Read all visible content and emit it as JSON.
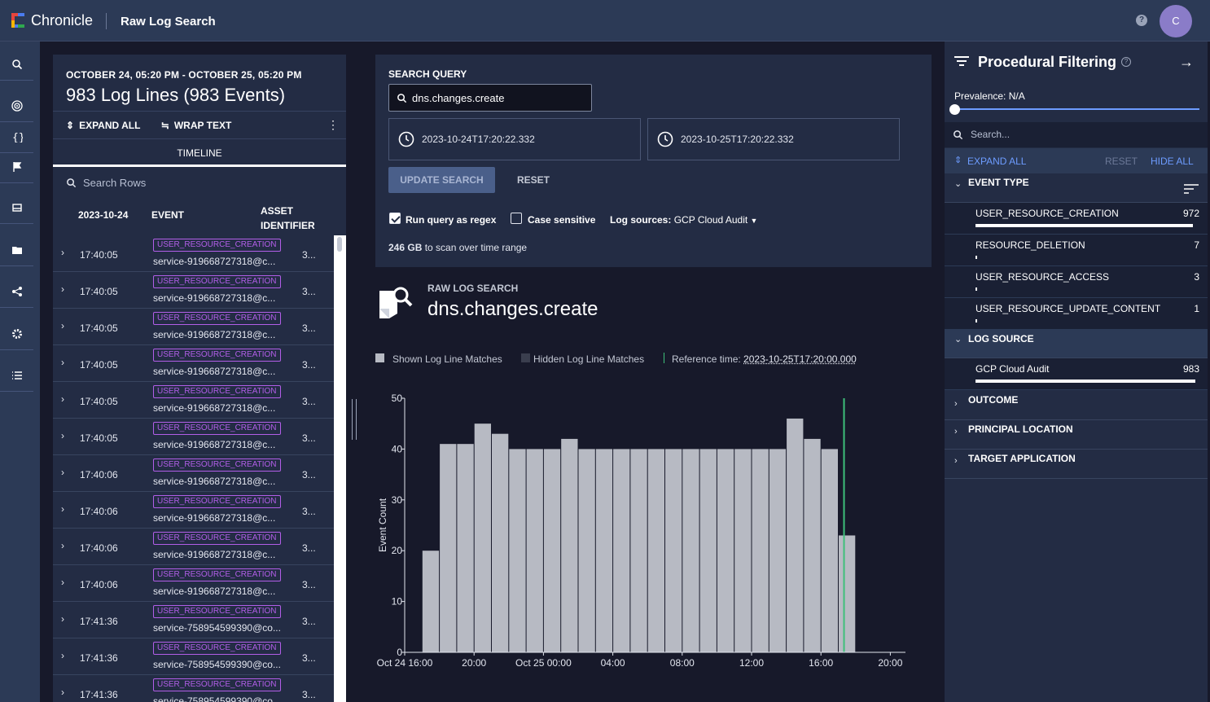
{
  "header": {
    "brand": "Chronicle",
    "app_title": "Raw Log Search",
    "help": "?",
    "avatar_initial": "C"
  },
  "sidenav": {
    "items": [
      "search-icon",
      "radar-icon",
      "braces-icon",
      "flag-icon",
      "inbox-icon",
      "folder-icon",
      "share-icon",
      "gear-icon",
      "list-icon"
    ]
  },
  "left_panel": {
    "range": "OCTOBER 24, 05:20 PM - OCTOBER 25, 05:20 PM",
    "count": "983 Log Lines (983 Events)",
    "expand_all": "EXPAND ALL",
    "wrap_text": "WRAP TEXT",
    "tab": "TIMELINE",
    "search_placeholder": "Search Rows",
    "col_date": "2023-10-24",
    "col_event": "EVENT",
    "col_asset": "ASSET IDENTIFIER",
    "rows": [
      {
        "time": "17:40:05",
        "event": "USER_RESOURCE_CREATION",
        "account": "service-919668727318@c...",
        "asset": "3..."
      },
      {
        "time": "17:40:05",
        "event": "USER_RESOURCE_CREATION",
        "account": "service-919668727318@c...",
        "asset": "3..."
      },
      {
        "time": "17:40:05",
        "event": "USER_RESOURCE_CREATION",
        "account": "service-919668727318@c...",
        "asset": "3..."
      },
      {
        "time": "17:40:05",
        "event": "USER_RESOURCE_CREATION",
        "account": "service-919668727318@c...",
        "asset": "3..."
      },
      {
        "time": "17:40:05",
        "event": "USER_RESOURCE_CREATION",
        "account": "service-919668727318@c...",
        "asset": "3..."
      },
      {
        "time": "17:40:05",
        "event": "USER_RESOURCE_CREATION",
        "account": "service-919668727318@c...",
        "asset": "3..."
      },
      {
        "time": "17:40:06",
        "event": "USER_RESOURCE_CREATION",
        "account": "service-919668727318@c...",
        "asset": "3..."
      },
      {
        "time": "17:40:06",
        "event": "USER_RESOURCE_CREATION",
        "account": "service-919668727318@c...",
        "asset": "3..."
      },
      {
        "time": "17:40:06",
        "event": "USER_RESOURCE_CREATION",
        "account": "service-919668727318@c...",
        "asset": "3..."
      },
      {
        "time": "17:40:06",
        "event": "USER_RESOURCE_CREATION",
        "account": "service-919668727318@c...",
        "asset": "3..."
      },
      {
        "time": "17:41:36",
        "event": "USER_RESOURCE_CREATION",
        "account": "service-758954599390@co...",
        "asset": "3..."
      },
      {
        "time": "17:41:36",
        "event": "USER_RESOURCE_CREATION",
        "account": "service-758954599390@co...",
        "asset": "3..."
      },
      {
        "time": "17:41:36",
        "event": "USER_RESOURCE_CREATION",
        "account": "service-758954599390@co...",
        "asset": "3..."
      }
    ]
  },
  "query": {
    "label": "SEARCH QUERY",
    "value": "dns.changes.create",
    "start": "2023-10-24T17:20:22.332",
    "end": "2023-10-25T17:20:22.332",
    "update": "UPDATE SEARCH",
    "reset": "RESET",
    "regex_label": "Run query as regex",
    "regex_checked": true,
    "case_label": "Case sensitive",
    "case_checked": false,
    "log_sources_label": "Log sources:",
    "log_sources_value": "GCP Cloud Audit",
    "scan_size": "246 GB",
    "scan_text": "to scan over time range"
  },
  "results": {
    "label": "RAW LOG SEARCH",
    "query": "dns.changes.create",
    "legend_shown": "Shown Log Line Matches",
    "legend_hidden": "Hidden Log Line Matches",
    "reference_label": "Reference time:",
    "reference_time": "2023-10-25T17:20:00.000"
  },
  "chart_data": {
    "type": "bar",
    "ylabel": "Event Count",
    "ylim": [
      0,
      50
    ],
    "yticks": [
      0,
      10,
      20,
      30,
      40,
      50
    ],
    "xticks": [
      "Oct 24 16:00",
      "20:00",
      "Oct 25 00:00",
      "04:00",
      "08:00",
      "12:00",
      "16:00",
      "20:00"
    ],
    "bin_hours": 1,
    "first_bin": "Oct 24 17:00",
    "values": [
      20,
      41,
      41,
      45,
      43,
      40,
      40,
      40,
      42,
      40,
      40,
      40,
      40,
      40,
      40,
      40,
      40,
      40,
      40,
      40,
      40,
      46,
      42,
      40,
      23
    ],
    "reference_line": "Oct 25 17:20",
    "colors": {
      "bar": "#b7bac3",
      "reference": "#3ec07a"
    }
  },
  "right_panel": {
    "title": "Procedural Filtering",
    "prevalence": "Prevalence: N/A",
    "search_placeholder": "Search...",
    "expand_all": "EXPAND ALL",
    "reset": "RESET",
    "hide_all": "HIDE ALL",
    "event_type_label": "EVENT TYPE",
    "event_types": [
      {
        "name": "USER_RESOURCE_CREATION",
        "count": "972",
        "share": 0.989
      },
      {
        "name": "RESOURCE_DELETION",
        "count": "7",
        "share": 0.007
      },
      {
        "name": "USER_RESOURCE_ACCESS",
        "count": "3",
        "share": 0.003
      },
      {
        "name": "USER_RESOURCE_UPDATE_CONTENT",
        "count": "1",
        "share": 0.001
      }
    ],
    "log_source_label": "LOG SOURCE",
    "log_sources": [
      {
        "name": "GCP Cloud Audit",
        "count": "983",
        "share": 1.0
      }
    ],
    "outcome_label": "OUTCOME",
    "principal_location_label": "PRINCIPAL LOCATION",
    "target_application_label": "TARGET APPLICATION"
  }
}
